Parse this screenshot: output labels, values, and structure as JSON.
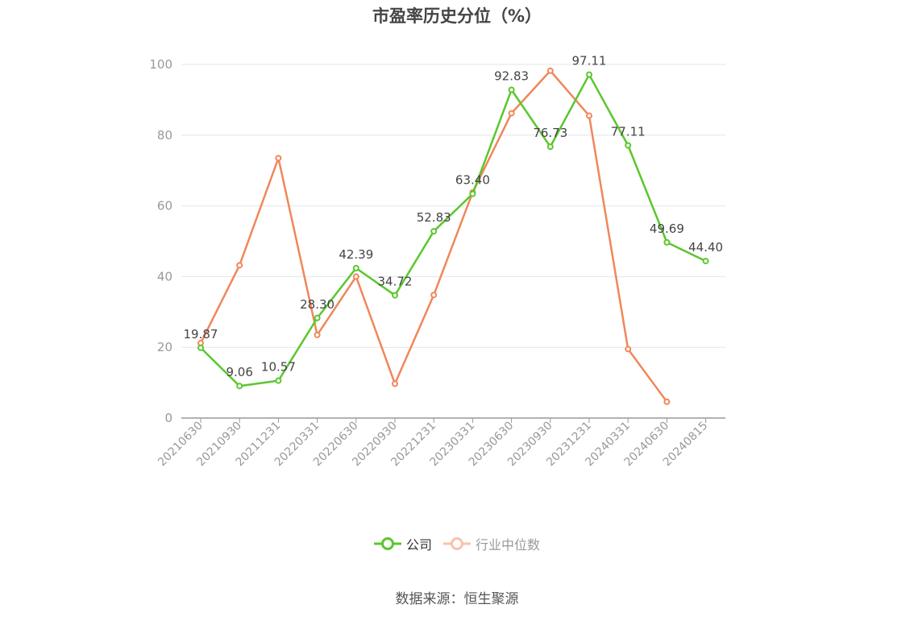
{
  "chart_data": {
    "type": "line",
    "title": "市盈率历史分位（%）",
    "categories": [
      "20210630",
      "20210930",
      "20211231",
      "20220331",
      "20220630",
      "20220930",
      "20221231",
      "20230331",
      "20230630",
      "20230930",
      "20231231",
      "20240331",
      "20240630",
      "20240815"
    ],
    "ylim": [
      0,
      100
    ],
    "yticks": [
      0,
      20,
      40,
      60,
      80,
      100
    ],
    "grid": true,
    "legend_position": "bottom",
    "series": [
      {
        "name": "公司",
        "color": "#5ac72d",
        "values": [
          19.87,
          9.06,
          10.57,
          28.3,
          42.39,
          34.72,
          52.83,
          63.4,
          92.83,
          76.73,
          97.11,
          77.11,
          49.69,
          44.4
        ],
        "labels": [
          "19.87",
          "9.06",
          "10.57",
          "28.30",
          "42.39",
          "34.72",
          "52.83",
          "63.40",
          "92.83",
          "76.73",
          "97.11",
          "77.11",
          "49.69",
          "44.40"
        ]
      },
      {
        "name": "行业中位数",
        "color": "#f0875a",
        "values": [
          21.2,
          43.2,
          73.5,
          23.5,
          40.0,
          9.7,
          34.8,
          63.8,
          86.2,
          98.2,
          85.5,
          19.5,
          4.6,
          null
        ]
      }
    ]
  },
  "source_text": "数据来源：恒生聚源"
}
